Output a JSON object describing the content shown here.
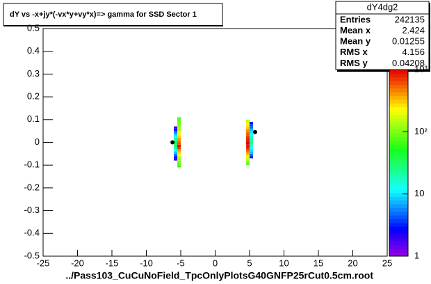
{
  "chart_data": {
    "type": "heatmap",
    "title": "dY vs -x+jy*(-vx*y+vy*x)=> gamma for SSD Sector 1",
    "x_label": "../Pass103_CuCuNoField_TpcOnlyPlotsG40GNFP25rCut0.5cm.root",
    "xlim": [
      -25,
      25
    ],
    "xticks": [
      -25,
      -20,
      -15,
      -10,
      -5,
      0,
      5,
      10,
      15,
      20,
      25
    ],
    "ylim": [
      -0.5,
      0.5
    ],
    "yticks": [
      -0.5,
      -0.4,
      -0.3,
      -0.2,
      -0.1,
      0,
      0.1,
      0.2,
      0.3,
      0.4,
      0.5
    ],
    "bin_width": [
      0.5,
      0.01
    ],
    "zlim": [
      1,
      1000
    ],
    "zlog": true,
    "zticks": [
      1,
      10,
      {
        "value": 100,
        "label": "10²"
      },
      {
        "value": 1000,
        "label": "10³"
      }
    ],
    "cells": [
      [
        -6,
        -0.08,
        2
      ],
      [
        -6,
        -0.07,
        3
      ],
      [
        -6,
        -0.06,
        5
      ],
      [
        -6,
        -0.05,
        8
      ],
      [
        -6,
        -0.04,
        12
      ],
      [
        -6,
        -0.03,
        20
      ],
      [
        -6,
        -0.02,
        30
      ],
      [
        -6,
        -0.01,
        40
      ],
      [
        -6,
        0,
        30
      ],
      [
        -6,
        0.01,
        20
      ],
      [
        -6,
        0.02,
        12
      ],
      [
        -6,
        0.03,
        8
      ],
      [
        -6,
        0.04,
        5
      ],
      [
        -6,
        0.05,
        3
      ],
      [
        -6,
        0.06,
        2
      ],
      [
        -5.5,
        -0.11,
        60
      ],
      [
        -5.5,
        -0.1,
        80
      ],
      [
        -5.5,
        -0.09,
        100
      ],
      [
        -5.5,
        -0.08,
        120
      ],
      [
        -5.5,
        -0.07,
        150
      ],
      [
        -5.5,
        -0.06,
        200
      ],
      [
        -5.5,
        -0.05,
        300
      ],
      [
        -5.5,
        -0.04,
        400
      ],
      [
        -5.5,
        -0.03,
        700
      ],
      [
        -5.5,
        -0.02,
        900
      ],
      [
        -5.5,
        -0.01,
        600
      ],
      [
        -5.5,
        0,
        500
      ],
      [
        -5.5,
        0.01,
        400
      ],
      [
        -5.5,
        0.02,
        300
      ],
      [
        -5.5,
        0.03,
        250
      ],
      [
        -5.5,
        0.04,
        200
      ],
      [
        -5.5,
        0.05,
        150
      ],
      [
        -5.5,
        0.06,
        120
      ],
      [
        -5.5,
        0.07,
        100
      ],
      [
        -5.5,
        0.08,
        90
      ],
      [
        -5.5,
        0.09,
        80
      ],
      [
        -5.5,
        0.1,
        70
      ],
      [
        4.5,
        -0.1,
        80
      ],
      [
        4.5,
        -0.09,
        100
      ],
      [
        4.5,
        -0.08,
        150
      ],
      [
        4.5,
        -0.07,
        200
      ],
      [
        4.5,
        -0.06,
        300
      ],
      [
        4.5,
        -0.05,
        400
      ],
      [
        4.5,
        -0.04,
        600
      ],
      [
        4.5,
        -0.03,
        800
      ],
      [
        4.5,
        -0.02,
        900
      ],
      [
        4.5,
        -0.01,
        1000
      ],
      [
        4.5,
        0,
        900
      ],
      [
        4.5,
        0.01,
        800
      ],
      [
        4.5,
        0.02,
        700
      ],
      [
        4.5,
        0.03,
        600
      ],
      [
        4.5,
        0.04,
        500
      ],
      [
        4.5,
        0.05,
        400
      ],
      [
        4.5,
        0.06,
        300
      ],
      [
        4.5,
        0.07,
        250
      ],
      [
        4.5,
        0.08,
        200
      ],
      [
        4.5,
        0.09,
        150
      ],
      [
        5,
        -0.07,
        3
      ],
      [
        5,
        -0.06,
        5
      ],
      [
        5,
        -0.05,
        8
      ],
      [
        5,
        -0.04,
        10
      ],
      [
        5,
        -0.03,
        12
      ],
      [
        5,
        -0.02,
        15
      ],
      [
        5,
        -0.01,
        20
      ],
      [
        5,
        0,
        25
      ],
      [
        5,
        0.01,
        20
      ],
      [
        5,
        0.02,
        15
      ],
      [
        5,
        0.03,
        12
      ],
      [
        5,
        0.04,
        10
      ],
      [
        5,
        0.05,
        8
      ],
      [
        5,
        0.06,
        5
      ],
      [
        5,
        0.07,
        4
      ],
      [
        5,
        0.08,
        3
      ]
    ],
    "profile": {
      "x": [
        -6.2,
        5.8
      ],
      "values": [
        0,
        0.045
      ]
    },
    "stats": {
      "title": "dY4dg2",
      "rows": [
        {
          "label": "Entries",
          "value": 242135
        },
        {
          "label": "Mean x",
          "value": 2.424
        },
        {
          "label": "Mean y",
          "value": 0.01255
        },
        {
          "label": "RMS x",
          "value": 4.156
        },
        {
          "label": "RMS y",
          "value": 0.04208
        }
      ]
    }
  }
}
